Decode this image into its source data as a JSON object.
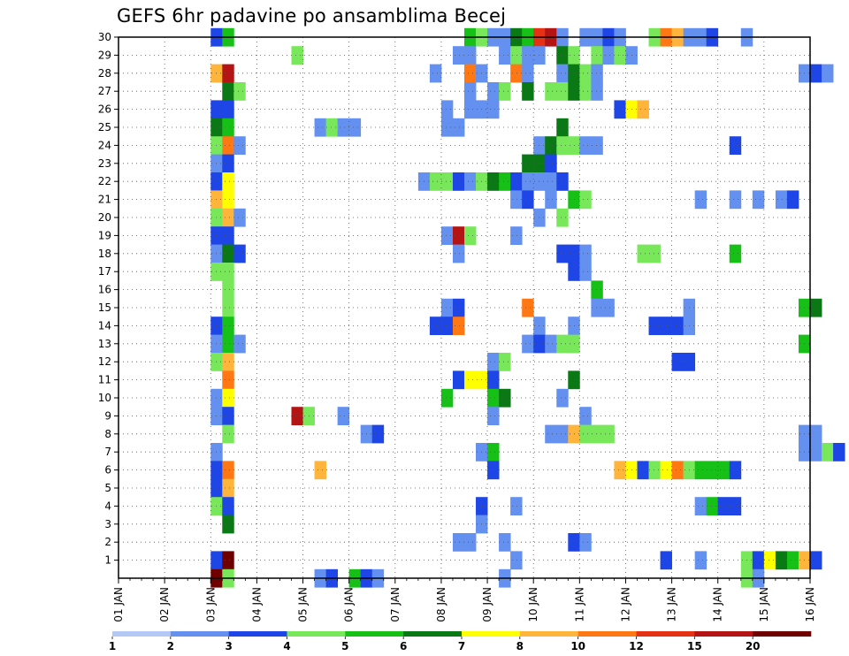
{
  "chart_data": {
    "type": "heatmap",
    "title": "GEFS 6hr padavine po ansamblima Becej",
    "xlabel": "",
    "ylabel": "",
    "grid": true,
    "x_tick_labels": [
      "01 JAN",
      "02 JAN",
      "03 JAN",
      "04 JAN",
      "05 JAN",
      "06 JAN",
      "07 JAN",
      "08 JAN",
      "09 JAN",
      "10 JAN",
      "11 JAN",
      "12 JAN",
      "13 JAN",
      "14 JAN",
      "15 JAN",
      "16 JAN"
    ],
    "y_tick_labels": [
      "1",
      "2",
      "3",
      "4",
      "5",
      "6",
      "7",
      "8",
      "9",
      "10",
      "11",
      "12",
      "13",
      "14",
      "15",
      "16",
      "17",
      "18",
      "19",
      "20",
      "21",
      "22",
      "23",
      "24",
      "25",
      "26",
      "27",
      "28",
      "29",
      "30"
    ],
    "x_range_days": [
      0,
      15
    ],
    "y_range_members": [
      0,
      30
    ],
    "step_hours": 6,
    "colorbar": {
      "labels": [
        "1",
        "2",
        "3",
        "4",
        "5",
        "6",
        "7",
        "8",
        "10",
        "12",
        "15",
        "20"
      ],
      "colors": [
        "#b4c8f5",
        "#6490f0",
        "#1e46e6",
        "#78e85a",
        "#16c016",
        "#0a7814",
        "#ffff00",
        "#ffb43c",
        "#ff7814",
        "#e63214",
        "#b41414",
        "#6e0000"
      ]
    },
    "cells": [
      [
        2.0,
        30,
        2
      ],
      [
        2.25,
        30,
        4
      ],
      [
        7.5,
        30,
        4
      ],
      [
        7.75,
        30,
        3
      ],
      [
        8.0,
        30,
        1
      ],
      [
        8.25,
        30,
        1
      ],
      [
        8.5,
        30,
        5
      ],
      [
        8.75,
        30,
        4
      ],
      [
        9.0,
        30,
        9
      ],
      [
        9.25,
        30,
        10
      ],
      [
        9.5,
        30,
        1
      ],
      [
        10.0,
        30,
        1
      ],
      [
        10.25,
        30,
        1
      ],
      [
        10.5,
        30,
        2
      ],
      [
        10.75,
        30,
        1
      ],
      [
        11.5,
        30,
        3
      ],
      [
        11.75,
        30,
        8
      ],
      [
        12.0,
        30,
        7
      ],
      [
        12.25,
        30,
        1
      ],
      [
        12.5,
        30,
        1
      ],
      [
        12.75,
        30,
        2
      ],
      [
        13.5,
        30,
        1
      ],
      [
        3.75,
        29,
        3
      ],
      [
        7.25,
        29,
        1
      ],
      [
        7.5,
        29,
        1
      ],
      [
        8.25,
        29,
        1
      ],
      [
        8.5,
        29,
        3
      ],
      [
        8.75,
        29,
        1
      ],
      [
        9.0,
        29,
        1
      ],
      [
        9.5,
        29,
        5
      ],
      [
        9.75,
        29,
        3
      ],
      [
        10.25,
        29,
        3
      ],
      [
        10.5,
        29,
        1
      ],
      [
        10.75,
        29,
        3
      ],
      [
        11.0,
        29,
        1
      ],
      [
        2.0,
        28,
        7
      ],
      [
        2.25,
        28,
        10
      ],
      [
        6.75,
        28,
        1
      ],
      [
        7.5,
        28,
        8
      ],
      [
        7.75,
        28,
        1
      ],
      [
        8.5,
        28,
        8
      ],
      [
        8.75,
        28,
        1
      ],
      [
        9.5,
        28,
        1
      ],
      [
        9.75,
        28,
        5
      ],
      [
        10.0,
        28,
        3
      ],
      [
        10.25,
        28,
        1
      ],
      [
        14.75,
        28,
        1
      ],
      [
        15.0,
        28,
        2
      ],
      [
        15.25,
        28,
        1
      ],
      [
        2.25,
        27,
        5
      ],
      [
        2.5,
        27,
        3
      ],
      [
        7.5,
        27,
        1
      ],
      [
        8.0,
        27,
        1
      ],
      [
        8.25,
        27,
        3
      ],
      [
        8.75,
        27,
        5
      ],
      [
        9.25,
        27,
        3
      ],
      [
        9.5,
        27,
        3
      ],
      [
        9.75,
        27,
        5
      ],
      [
        10.0,
        27,
        3
      ],
      [
        10.25,
        27,
        1
      ],
      [
        2.0,
        26,
        2
      ],
      [
        2.25,
        26,
        2
      ],
      [
        7.0,
        26,
        1
      ],
      [
        7.5,
        26,
        1
      ],
      [
        7.75,
        26,
        1
      ],
      [
        8.0,
        26,
        1
      ],
      [
        10.75,
        26,
        2
      ],
      [
        11.0,
        26,
        6
      ],
      [
        11.25,
        26,
        7
      ],
      [
        2.0,
        25,
        5
      ],
      [
        2.25,
        25,
        4
      ],
      [
        4.25,
        25,
        1
      ],
      [
        4.5,
        25,
        3
      ],
      [
        4.75,
        25,
        1
      ],
      [
        5.0,
        25,
        1
      ],
      [
        7.0,
        25,
        1
      ],
      [
        7.25,
        25,
        1
      ],
      [
        9.5,
        25,
        5
      ],
      [
        2.0,
        24,
        3
      ],
      [
        2.25,
        24,
        8
      ],
      [
        2.5,
        24,
        1
      ],
      [
        9.0,
        24,
        1
      ],
      [
        9.25,
        24,
        5
      ],
      [
        9.5,
        24,
        3
      ],
      [
        9.75,
        24,
        3
      ],
      [
        10.0,
        24,
        1
      ],
      [
        10.25,
        24,
        1
      ],
      [
        13.25,
        24,
        2
      ],
      [
        2.0,
        23,
        1
      ],
      [
        2.25,
        23,
        2
      ],
      [
        8.75,
        23,
        5
      ],
      [
        9.0,
        23,
        5
      ],
      [
        9.25,
        23,
        2
      ],
      [
        2.0,
        22,
        2
      ],
      [
        2.25,
        22,
        6
      ],
      [
        6.5,
        22,
        1
      ],
      [
        6.75,
        22,
        3
      ],
      [
        7.0,
        22,
        3
      ],
      [
        7.25,
        22,
        2
      ],
      [
        7.5,
        22,
        1
      ],
      [
        7.75,
        22,
        3
      ],
      [
        8.0,
        22,
        5
      ],
      [
        8.25,
        22,
        4
      ],
      [
        8.5,
        22,
        2
      ],
      [
        8.75,
        22,
        1
      ],
      [
        9.0,
        22,
        1
      ],
      [
        9.25,
        22,
        1
      ],
      [
        9.5,
        22,
        2
      ],
      [
        2.0,
        21,
        7
      ],
      [
        2.25,
        21,
        6
      ],
      [
        8.5,
        21,
        1
      ],
      [
        8.75,
        21,
        2
      ],
      [
        9.25,
        21,
        1
      ],
      [
        9.75,
        21,
        4
      ],
      [
        10.0,
        21,
        3
      ],
      [
        12.5,
        21,
        1
      ],
      [
        13.25,
        21,
        1
      ],
      [
        13.75,
        21,
        1
      ],
      [
        14.25,
        21,
        1
      ],
      [
        14.5,
        21,
        2
      ],
      [
        2.0,
        20,
        3
      ],
      [
        2.25,
        20,
        7
      ],
      [
        2.5,
        20,
        1
      ],
      [
        9.0,
        20,
        1
      ],
      [
        9.5,
        20,
        3
      ],
      [
        2.0,
        19,
        2
      ],
      [
        2.25,
        19,
        2
      ],
      [
        7.0,
        19,
        1
      ],
      [
        7.25,
        19,
        10
      ],
      [
        7.5,
        19,
        3
      ],
      [
        8.5,
        19,
        1
      ],
      [
        2.0,
        18,
        1
      ],
      [
        2.25,
        18,
        5
      ],
      [
        2.5,
        18,
        2
      ],
      [
        7.25,
        18,
        1
      ],
      [
        9.5,
        18,
        2
      ],
      [
        9.75,
        18,
        2
      ],
      [
        10.0,
        18,
        1
      ],
      [
        11.25,
        18,
        3
      ],
      [
        11.5,
        18,
        3
      ],
      [
        13.25,
        18,
        4
      ],
      [
        2.0,
        17,
        3
      ],
      [
        2.25,
        17,
        3
      ],
      [
        9.75,
        17,
        2
      ],
      [
        10.0,
        17,
        1
      ],
      [
        2.25,
        16,
        3
      ],
      [
        10.25,
        16,
        4
      ],
      [
        2.25,
        15,
        3
      ],
      [
        7.0,
        15,
        1
      ],
      [
        7.25,
        15,
        2
      ],
      [
        8.75,
        15,
        8
      ],
      [
        10.25,
        15,
        1
      ],
      [
        10.5,
        15,
        1
      ],
      [
        12.25,
        15,
        1
      ],
      [
        14.75,
        15,
        4
      ],
      [
        15.0,
        15,
        5
      ],
      [
        2.0,
        14,
        2
      ],
      [
        2.25,
        14,
        4
      ],
      [
        6.75,
        14,
        2
      ],
      [
        7.0,
        14,
        2
      ],
      [
        7.25,
        14,
        8
      ],
      [
        9.0,
        14,
        1
      ],
      [
        9.75,
        14,
        1
      ],
      [
        11.5,
        14,
        2
      ],
      [
        11.75,
        14,
        2
      ],
      [
        12.0,
        14,
        2
      ],
      [
        12.25,
        14,
        1
      ],
      [
        2.0,
        13,
        1
      ],
      [
        2.25,
        13,
        4
      ],
      [
        2.5,
        13,
        1
      ],
      [
        8.75,
        13,
        1
      ],
      [
        9.0,
        13,
        2
      ],
      [
        9.25,
        13,
        1
      ],
      [
        9.5,
        13,
        3
      ],
      [
        9.75,
        13,
        3
      ],
      [
        14.75,
        13,
        4
      ],
      [
        2.0,
        12,
        3
      ],
      [
        2.25,
        12,
        7
      ],
      [
        8.0,
        12,
        1
      ],
      [
        8.25,
        12,
        3
      ],
      [
        12.0,
        12,
        2
      ],
      [
        12.25,
        12,
        2
      ],
      [
        2.25,
        11,
        8
      ],
      [
        7.25,
        11,
        2
      ],
      [
        7.5,
        11,
        6
      ],
      [
        7.75,
        11,
        6
      ],
      [
        8.0,
        11,
        2
      ],
      [
        9.75,
        11,
        5
      ],
      [
        2.0,
        10,
        1
      ],
      [
        2.25,
        10,
        6
      ],
      [
        7.0,
        10,
        4
      ],
      [
        8.0,
        10,
        4
      ],
      [
        8.25,
        10,
        5
      ],
      [
        9.5,
        10,
        1
      ],
      [
        2.0,
        9,
        1
      ],
      [
        2.25,
        9,
        2
      ],
      [
        3.75,
        9,
        10
      ],
      [
        4.0,
        9,
        3
      ],
      [
        4.75,
        9,
        1
      ],
      [
        8.0,
        9,
        1
      ],
      [
        10.0,
        9,
        1
      ],
      [
        2.25,
        8,
        3
      ],
      [
        5.25,
        8,
        1
      ],
      [
        5.5,
        8,
        2
      ],
      [
        9.25,
        8,
        1
      ],
      [
        9.5,
        8,
        1
      ],
      [
        9.75,
        8,
        7
      ],
      [
        10.0,
        8,
        3
      ],
      [
        10.25,
        8,
        3
      ],
      [
        10.5,
        8,
        3
      ],
      [
        14.75,
        8,
        1
      ],
      [
        15.0,
        8,
        1
      ],
      [
        2.0,
        7,
        1
      ],
      [
        7.75,
        7,
        1
      ],
      [
        8.0,
        7,
        4
      ],
      [
        14.75,
        7,
        1
      ],
      [
        15.0,
        7,
        1
      ],
      [
        15.25,
        7,
        3
      ],
      [
        15.5,
        7,
        2
      ],
      [
        2.0,
        6,
        2
      ],
      [
        2.25,
        6,
        8
      ],
      [
        4.25,
        6,
        7
      ],
      [
        8.0,
        6,
        2
      ],
      [
        10.75,
        6,
        7
      ],
      [
        11.0,
        6,
        6
      ],
      [
        11.25,
        6,
        2
      ],
      [
        11.5,
        6,
        3
      ],
      [
        11.75,
        6,
        6
      ],
      [
        12.0,
        6,
        8
      ],
      [
        12.25,
        6,
        3
      ],
      [
        12.5,
        6,
        4
      ],
      [
        12.75,
        6,
        4
      ],
      [
        13.0,
        6,
        4
      ],
      [
        13.25,
        6,
        2
      ],
      [
        2.0,
        5,
        2
      ],
      [
        2.25,
        5,
        7
      ],
      [
        2.0,
        4,
        3
      ],
      [
        2.25,
        4,
        2
      ],
      [
        7.75,
        4,
        2
      ],
      [
        8.5,
        4,
        1
      ],
      [
        12.5,
        4,
        1
      ],
      [
        12.75,
        4,
        4
      ],
      [
        13.0,
        4,
        2
      ],
      [
        13.25,
        4,
        2
      ],
      [
        2.25,
        3,
        5
      ],
      [
        7.75,
        3,
        1
      ],
      [
        7.25,
        2,
        1
      ],
      [
        7.5,
        2,
        1
      ],
      [
        8.25,
        2,
        1
      ],
      [
        9.75,
        2,
        2
      ],
      [
        10.0,
        2,
        1
      ],
      [
        2.0,
        1,
        2
      ],
      [
        2.25,
        1,
        11
      ],
      [
        8.5,
        1,
        1
      ],
      [
        11.75,
        1,
        2
      ],
      [
        12.5,
        1,
        1
      ],
      [
        13.5,
        1,
        3
      ],
      [
        13.75,
        1,
        2
      ],
      [
        14.0,
        1,
        6
      ],
      [
        14.25,
        1,
        5
      ],
      [
        14.5,
        1,
        4
      ],
      [
        14.75,
        1,
        7
      ],
      [
        15.0,
        1,
        2
      ],
      [
        2.0,
        0,
        11
      ],
      [
        2.25,
        0,
        3
      ],
      [
        4.25,
        0,
        1
      ],
      [
        4.5,
        0,
        2
      ],
      [
        5.0,
        0,
        4
      ],
      [
        5.25,
        0,
        2
      ],
      [
        5.5,
        0,
        1
      ],
      [
        8.25,
        0,
        1
      ],
      [
        13.5,
        0,
        3
      ],
      [
        13.75,
        0,
        1
      ]
    ]
  }
}
